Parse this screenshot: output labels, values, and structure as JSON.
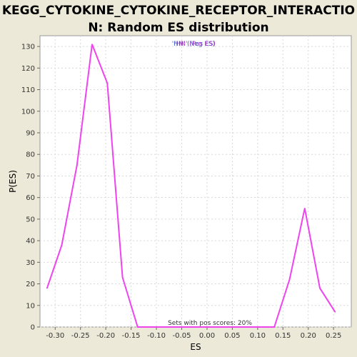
{
  "title_line1": "KEGG_CYTOKINE_CYTOKINE_RECEPTOR_INTERACTIO",
  "title_line2": "N: Random ES distribution",
  "chart_data": {
    "type": "line",
    "xlabel": "ES",
    "ylabel": "P(ES)",
    "xlim": [
      -0.33,
      0.285
    ],
    "ylim": [
      0,
      135
    ],
    "xticks": [
      -0.3,
      -0.25,
      -0.2,
      -0.15,
      -0.1,
      -0.05,
      0.0,
      0.05,
      0.1,
      0.15,
      0.2,
      0.25
    ],
    "xtick_labels": [
      "-0.30",
      "-0.25",
      "-0.20",
      "-0.15",
      "-0.10",
      "-0.05",
      "0.00",
      "0.05",
      "0.10",
      "0.15",
      "0.20",
      "0.25"
    ],
    "yticks": [
      0,
      10,
      20,
      30,
      40,
      50,
      60,
      70,
      80,
      90,
      100,
      110,
      120,
      130
    ],
    "grid": true,
    "legend_entries": [
      "'HN' (Neg ES)",
      "'HN' (Pos ES)"
    ],
    "legend_colors": [
      "#2040c0",
      "#a020c0"
    ],
    "line_color": "#ee44ee",
    "series": [
      {
        "x": [
          -0.316,
          -0.287,
          -0.257,
          -0.227,
          -0.197,
          -0.167,
          -0.137,
          -0.107,
          -0.077,
          -0.047,
          -0.017,
          0.013,
          0.043,
          0.073,
          0.103,
          0.133,
          0.163,
          0.193,
          0.223,
          0.253
        ],
        "y": [
          18,
          38,
          75,
          131,
          113,
          23,
          0,
          0,
          0,
          0,
          0,
          0,
          0,
          0,
          0,
          0,
          22,
          55,
          18,
          7
        ]
      }
    ],
    "annotation": "Sets with pos scores: 20%"
  }
}
